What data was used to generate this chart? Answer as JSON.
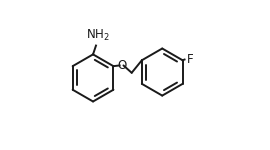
{
  "bg_color": "#ffffff",
  "line_color": "#1a1a1a",
  "line_width": 1.4,
  "dbo": 0.012,
  "lcx": 0.215,
  "lcy": 0.48,
  "rcx": 0.685,
  "rcy": 0.52,
  "r": 0.16,
  "nh2_label": "NH$_2$",
  "o_label": "O",
  "f_label": "F",
  "font_size": 8.5
}
